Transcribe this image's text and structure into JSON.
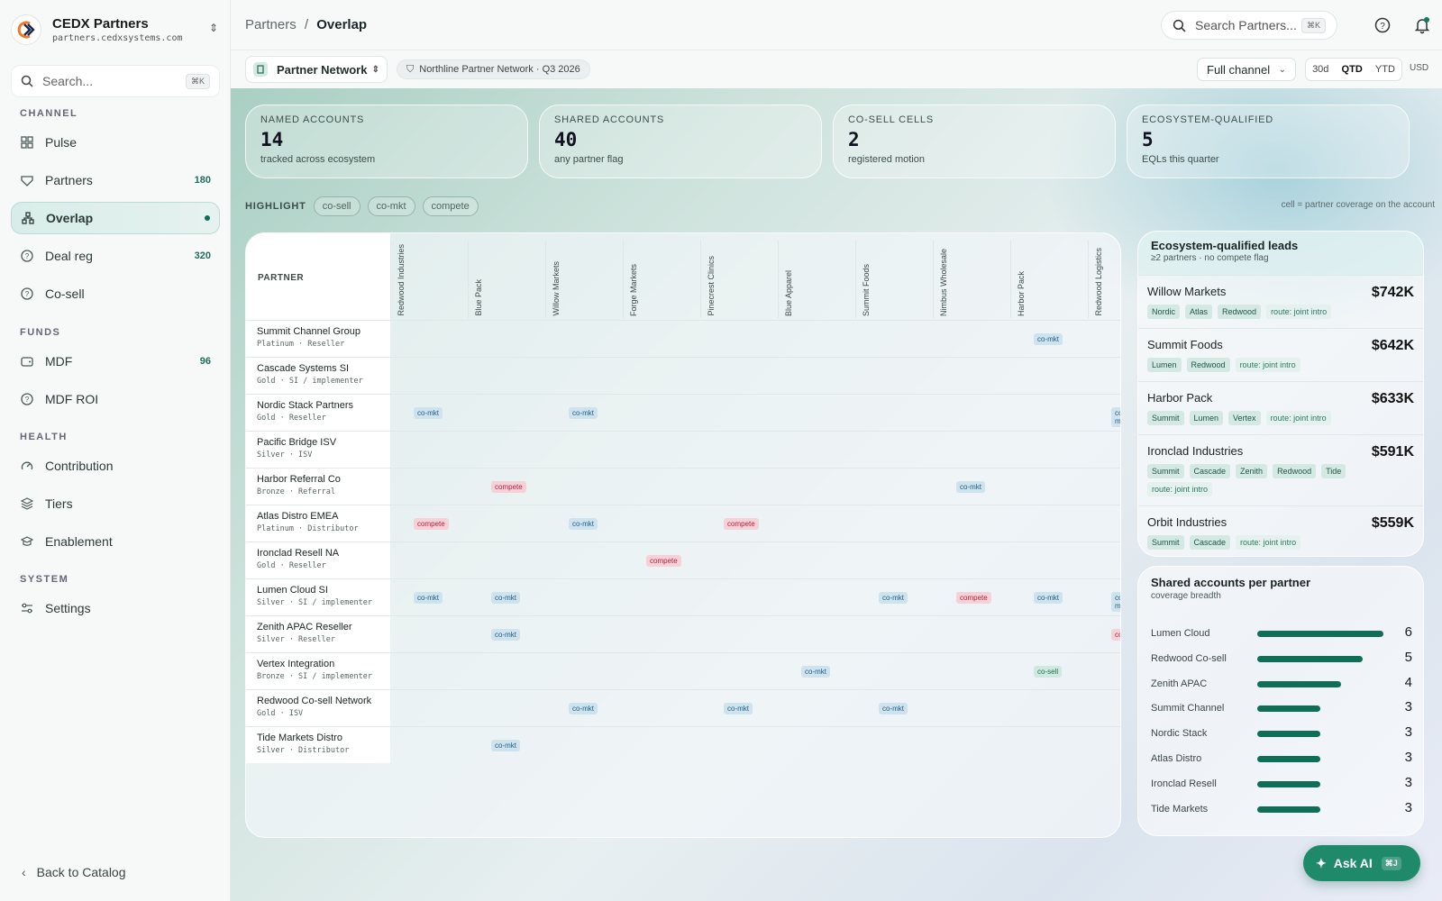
{
  "brand": {
    "name": "CEDX Partners",
    "domain": "partners.cedxsystems.com"
  },
  "sidebar": {
    "search_placeholder": "Search...",
    "search_kbd": "⌘K",
    "sections": {
      "channel": "CHANNEL",
      "funds": "FUNDS",
      "health": "HEALTH",
      "system": "SYSTEM"
    },
    "items": [
      {
        "label": "Pulse",
        "icon": "grid-icon",
        "count": ""
      },
      {
        "label": "Partners",
        "icon": "handshake-icon",
        "count": "180"
      },
      {
        "label": "Overlap",
        "icon": "network-icon",
        "count": ""
      },
      {
        "label": "Deal reg",
        "icon": "help-circle-icon",
        "count": "320"
      },
      {
        "label": "Co-sell",
        "icon": "help-circle-icon",
        "count": ""
      },
      {
        "label": "MDF",
        "icon": "wallet-icon",
        "count": "96"
      },
      {
        "label": "MDF ROI",
        "icon": "help-circle-icon",
        "count": ""
      },
      {
        "label": "Contribution",
        "icon": "gauge-icon",
        "count": ""
      },
      {
        "label": "Tiers",
        "icon": "layers-icon",
        "count": ""
      },
      {
        "label": "Enablement",
        "icon": "graduation-cap-icon",
        "count": ""
      },
      {
        "label": "Settings",
        "icon": "sliders-icon",
        "count": ""
      }
    ],
    "back_label": "Back to Catalog"
  },
  "topbar": {
    "crumb_parent": "Partners",
    "crumb_sep": "/",
    "crumb_current": "Overlap",
    "search_placeholder": "Search Partners...",
    "search_kbd": "⌘K"
  },
  "filters": {
    "network": "Partner Network",
    "network_pill": "Northline Partner Network · Q3 2026",
    "channel": "Full channel",
    "periods": [
      "30d",
      "QTD",
      "YTD"
    ],
    "active_period": "QTD",
    "currency": "USD"
  },
  "kpis": [
    {
      "label": "NAMED ACCOUNTS",
      "value": "14",
      "sub": "tracked across ecosystem"
    },
    {
      "label": "SHARED ACCOUNTS",
      "value": "40",
      "sub": "any partner flag"
    },
    {
      "label": "CO-SELL CELLS",
      "value": "2",
      "sub": "registered motion"
    },
    {
      "label": "ECOSYSTEM-QUALIFIED",
      "value": "5",
      "sub": "EQLs this quarter"
    }
  ],
  "highlight": {
    "label": "HIGHLIGHT",
    "chips": [
      "co-sell",
      "co-mkt",
      "compete"
    ],
    "note": "cell = partner coverage on the account"
  },
  "matrix": {
    "partner_header": "PARTNER",
    "columns": [
      "Redwood Industries",
      "Blue Pack",
      "Willow Markets",
      "Forge Markets",
      "Pinecrest Clinics",
      "Blue Apparel",
      "Summit Foods",
      "Nimbus Wholesale",
      "Harbor Pack",
      "Redwood Logistics"
    ],
    "rows": [
      {
        "name": "Summit Channel Group",
        "meta": "Platinum · Reseller",
        "cells": [
          {
            "col": 8,
            "tag": "co-mkt"
          }
        ]
      },
      {
        "name": "Cascade Systems SI",
        "meta": "Gold · SI / implementer",
        "cells": []
      },
      {
        "name": "Nordic Stack Partners",
        "meta": "Gold · Reseller",
        "cells": [
          {
            "col": 0,
            "tag": "co-mkt"
          },
          {
            "col": 2,
            "tag": "co-mkt"
          },
          {
            "col": 9,
            "tag": "co-mkt"
          }
        ]
      },
      {
        "name": "Pacific Bridge ISV",
        "meta": "Silver · ISV",
        "cells": []
      },
      {
        "name": "Harbor Referral Co",
        "meta": "Bronze · Referral",
        "cells": [
          {
            "col": 1,
            "tag": "compete"
          },
          {
            "col": 7,
            "tag": "co-mkt"
          }
        ]
      },
      {
        "name": "Atlas Distro EMEA",
        "meta": "Platinum · Distributor",
        "cells": [
          {
            "col": 0,
            "tag": "compete"
          },
          {
            "col": 2,
            "tag": "co-mkt"
          },
          {
            "col": 4,
            "tag": "compete"
          }
        ]
      },
      {
        "name": "Ironclad Resell NA",
        "meta": "Gold · Reseller",
        "cells": [
          {
            "col": 3,
            "tag": "compete"
          }
        ]
      },
      {
        "name": "Lumen Cloud SI",
        "meta": "Silver · SI / implementer",
        "cells": [
          {
            "col": 0,
            "tag": "co-mkt"
          },
          {
            "col": 1,
            "tag": "co-mkt"
          },
          {
            "col": 6,
            "tag": "co-mkt"
          },
          {
            "col": 7,
            "tag": "compete"
          },
          {
            "col": 8,
            "tag": "co-mkt"
          },
          {
            "col": 9,
            "tag": "co-mkt"
          }
        ]
      },
      {
        "name": "Zenith APAC Reseller",
        "meta": "Silver · Reseller",
        "cells": [
          {
            "col": 1,
            "tag": "co-mkt"
          },
          {
            "col": 9,
            "tag": "compete"
          }
        ]
      },
      {
        "name": "Vertex Integration",
        "meta": "Bronze · SI / implementer",
        "cells": [
          {
            "col": 5,
            "tag": "co-mkt"
          },
          {
            "col": 8,
            "tag": "co-sell"
          }
        ]
      },
      {
        "name": "Redwood Co-sell Network",
        "meta": "Gold · ISV",
        "cells": [
          {
            "col": 2,
            "tag": "co-mkt"
          },
          {
            "col": 4,
            "tag": "co-mkt"
          },
          {
            "col": 6,
            "tag": "co-mkt"
          }
        ]
      },
      {
        "name": "Tide Markets Distro",
        "meta": "Silver · Distributor",
        "cells": [
          {
            "col": 1,
            "tag": "co-mkt"
          }
        ]
      }
    ]
  },
  "eql": {
    "title": "Ecosystem-qualified leads",
    "subtitle": "≥2 partners · no compete flag",
    "leads": [
      {
        "name": "Willow Markets",
        "amount": "$742K",
        "partners": [
          "Nordic",
          "Atlas",
          "Redwood"
        ],
        "route": "route: joint intro"
      },
      {
        "name": "Summit Foods",
        "amount": "$642K",
        "partners": [
          "Lumen",
          "Redwood"
        ],
        "route": "route: joint intro"
      },
      {
        "name": "Harbor Pack",
        "amount": "$633K",
        "partners": [
          "Summit",
          "Lumen",
          "Vertex"
        ],
        "route": "route: joint intro"
      },
      {
        "name": "Ironclad Industries",
        "amount": "$591K",
        "partners": [
          "Summit",
          "Cascade",
          "Zenith",
          "Redwood",
          "Tide"
        ],
        "route": "route: joint intro"
      },
      {
        "name": "Orbit Industries",
        "amount": "$559K",
        "partners": [
          "Summit",
          "Cascade"
        ],
        "route": "route: joint intro"
      }
    ]
  },
  "shared": {
    "title": "Shared accounts per partner",
    "subtitle": "coverage breadth",
    "max": 6,
    "bars": [
      {
        "name": "Lumen Cloud",
        "value": 6
      },
      {
        "name": "Redwood Co-sell",
        "value": 5
      },
      {
        "name": "Zenith APAC",
        "value": 4
      },
      {
        "name": "Summit Channel",
        "value": 3
      },
      {
        "name": "Nordic Stack",
        "value": 3
      },
      {
        "name": "Atlas Distro",
        "value": 3
      },
      {
        "name": "Ironclad Resell",
        "value": 3
      },
      {
        "name": "Tide Markets",
        "value": 3
      }
    ]
  },
  "ask_ai": {
    "label": "Ask AI",
    "kbd": "⌘J"
  },
  "colors": {
    "accent": "#0f6e58",
    "comkt": "#1f5e86",
    "compete": "#b3243d",
    "cosell": "#1b7052"
  }
}
